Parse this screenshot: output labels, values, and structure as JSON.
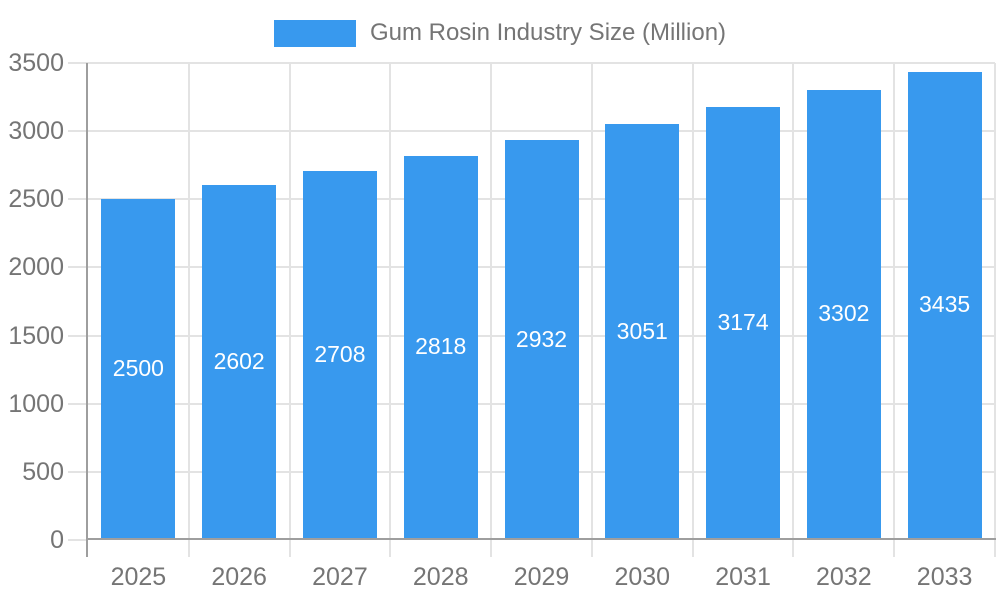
{
  "legend": {
    "label": "Gum Rosin Industry Size (Million)"
  },
  "chart_data": {
    "type": "bar",
    "title": "Gum Rosin Industry Size (Million)",
    "categories": [
      "2025",
      "2026",
      "2027",
      "2028",
      "2029",
      "2030",
      "2031",
      "2032",
      "2033"
    ],
    "series": [
      {
        "name": "Gum Rosin Industry Size (Million)",
        "values": [
          2500,
          2602,
          2708,
          2818,
          2932,
          3051,
          3174,
          3302,
          3435
        ]
      }
    ],
    "bar_value_labels": [
      "2500",
      "2602",
      "2708",
      "2818",
      "2932",
      "3051",
      "3174",
      "3302",
      "3435"
    ],
    "xlabel": "",
    "ylabel": "",
    "ylim": [
      0,
      3500
    ],
    "yticks": [
      0,
      500,
      1000,
      1500,
      2000,
      2500,
      3000,
      3500
    ],
    "grid": true,
    "legend_position": "top-center",
    "colors": {
      "bar": "#3899ee",
      "bar_label": "#ffffff",
      "axis_text": "#757575",
      "grid": "#e3e3e3",
      "axis_line": "#9e9e9e",
      "background": "#ffffff"
    }
  }
}
